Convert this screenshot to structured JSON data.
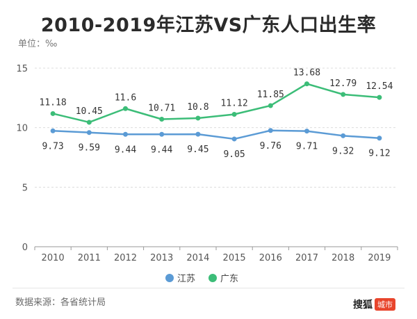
{
  "chart_data": {
    "type": "line",
    "title": "2010-2019年江苏VS广东人口出生率",
    "unit_label": "单位：‰",
    "categories": [
      "2010",
      "2011",
      "2012",
      "2013",
      "2014",
      "2015",
      "2016",
      "2017",
      "2018",
      "2019"
    ],
    "ylim": [
      0,
      15
    ],
    "yticks": [
      0,
      5,
      10,
      15
    ],
    "grid": true,
    "legend_position": "bottom-center",
    "series": [
      {
        "name": "江苏",
        "color": "#5b9bd5",
        "values": [
          9.73,
          9.59,
          9.44,
          9.44,
          9.45,
          9.05,
          9.76,
          9.71,
          9.32,
          9.12
        ],
        "labels": [
          "9.73",
          "9.59",
          "9.44",
          "9.44",
          "9.45",
          "9.05",
          "9.76",
          "9.71",
          "9.32",
          "9.12"
        ]
      },
      {
        "name": "广东",
        "color": "#3cbd78",
        "values": [
          11.18,
          10.45,
          11.6,
          10.71,
          10.8,
          11.12,
          11.85,
          13.68,
          12.79,
          12.54
        ],
        "labels": [
          "11.18",
          "10.45",
          "11.6",
          "10.71",
          "10.8",
          "11.12",
          "11.85",
          "13.68",
          "12.79",
          "12.54"
        ]
      }
    ]
  },
  "footer": {
    "source": "数据来源：各省统计局",
    "brand": "搜狐",
    "brand_badge": "城市"
  }
}
